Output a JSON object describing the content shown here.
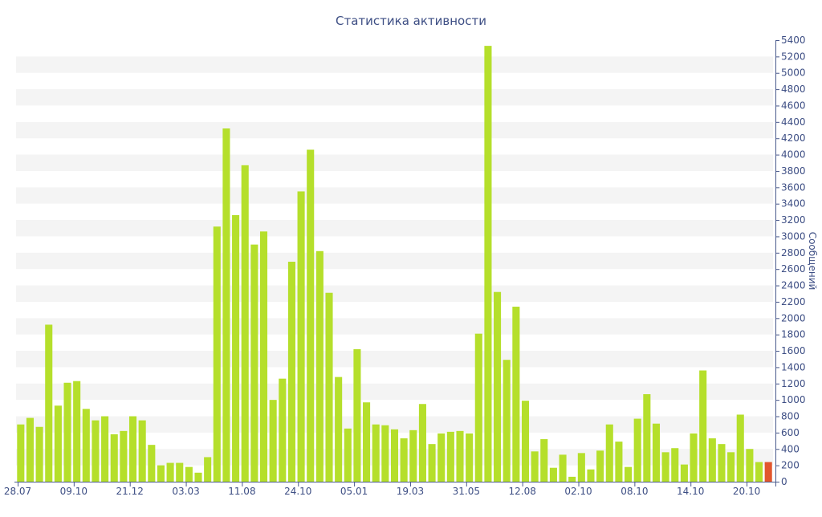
{
  "chart_data": {
    "type": "bar",
    "title": "Статистика активности",
    "ylabel": "Сообщений",
    "xlabel": "",
    "ylim": [
      0,
      5400
    ],
    "ytick_step": 200,
    "y_axis_side": "right",
    "grid": "alternating horizontal bands",
    "x_tick_labels": [
      {
        "label": "28.07",
        "index": 0
      },
      {
        "label": "09.10",
        "index": 6
      },
      {
        "label": "21.12",
        "index": 12
      },
      {
        "label": "03.03",
        "index": 18
      },
      {
        "label": "11.08",
        "index": 24
      },
      {
        "label": "24.10",
        "index": 30
      },
      {
        "label": "05.01",
        "index": 36
      },
      {
        "label": "19.03",
        "index": 42
      },
      {
        "label": "31.05",
        "index": 48
      },
      {
        "label": "12.08",
        "index": 54
      },
      {
        "label": "02.10",
        "index": 60
      },
      {
        "label": "08.10",
        "index": 66
      },
      {
        "label": "14.10",
        "index": 72
      },
      {
        "label": "20.10",
        "index": 78
      }
    ],
    "values": [
      700,
      780,
      670,
      1920,
      930,
      1210,
      1230,
      890,
      750,
      800,
      580,
      620,
      800,
      750,
      450,
      200,
      230,
      230,
      180,
      110,
      300,
      3120,
      4320,
      3260,
      3870,
      2900,
      3060,
      1000,
      1260,
      2690,
      3550,
      4060,
      2820,
      2310,
      1280,
      650,
      1620,
      970,
      700,
      690,
      640,
      530,
      630,
      950,
      460,
      590,
      610,
      620,
      590,
      1810,
      5330,
      2320,
      1490,
      2140,
      990,
      370,
      520,
      170,
      330,
      60,
      350,
      150,
      380,
      700,
      490,
      180,
      770,
      1070,
      710,
      360,
      410,
      210,
      590,
      1360,
      530,
      460,
      360,
      820,
      400,
      240,
      240
    ],
    "highlight_last": true,
    "colors": {
      "bar": "#b5df2b",
      "bar_last": "#e2562c",
      "band": "#f4f4f4",
      "axis": "#4a5a8c",
      "text": "#3d4e84"
    }
  }
}
